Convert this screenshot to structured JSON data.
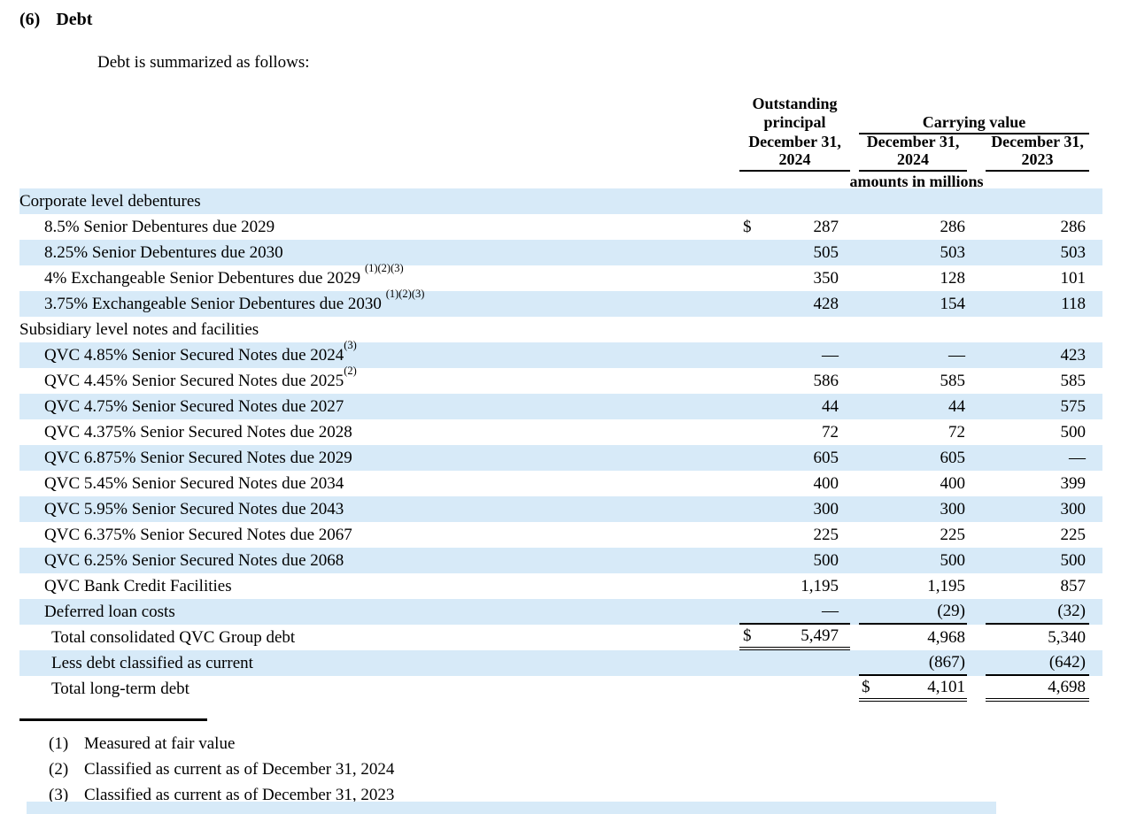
{
  "page": {
    "section_number": "(6)",
    "section_title": "Debt",
    "intro": "Debt is summarized as follows:"
  },
  "colors": {
    "row_highlight": "#d7eaf8"
  },
  "table": {
    "header": {
      "col1_line1": "Outstanding",
      "col1_line2": "principal",
      "col1_line3": "December 31,",
      "col1_line4": "2024",
      "group2_title": "Carrying value",
      "col2_line1": "December 31,",
      "col2_line2": "2024",
      "col3_line1": "December 31,",
      "col3_line2": "2023",
      "units_note": "amounts in millions"
    },
    "rows": [
      {
        "label": "Corporate level debentures",
        "indent": 0,
        "hl": true
      },
      {
        "label": "8.5% Senior Debentures due 2029",
        "indent": 1,
        "c1": {
          "cur": "$",
          "val": "287"
        },
        "c2": {
          "val": "286"
        },
        "c3": {
          "val": "286"
        }
      },
      {
        "label": "8.25% Senior Debentures due 2030",
        "indent": 1,
        "hl": true,
        "c1": {
          "val": "505"
        },
        "c2": {
          "val": "503"
        },
        "c3": {
          "val": "503"
        }
      },
      {
        "label": "4% Exchangeable Senior Debentures due 2029 ",
        "sup": "(1)(2)(3)",
        "indent": 1,
        "c1": {
          "val": "350"
        },
        "c2": {
          "val": "128"
        },
        "c3": {
          "val": "101"
        }
      },
      {
        "label": "3.75% Exchangeable Senior Debentures due 2030 ",
        "sup": "(1)(2)(3)",
        "indent": 1,
        "hl": true,
        "c1": {
          "val": "428"
        },
        "c2": {
          "val": "154"
        },
        "c3": {
          "val": "118"
        }
      },
      {
        "label": "Subsidiary level notes and facilities",
        "indent": 0
      },
      {
        "label": "QVC 4.85% Senior Secured Notes due 2024",
        "sup": "(3)",
        "indent": 1,
        "hl": true,
        "c1": {
          "val": "—"
        },
        "c2": {
          "val": "—"
        },
        "c3": {
          "val": "423"
        }
      },
      {
        "label": "QVC 4.45% Senior Secured Notes due 2025",
        "sup": "(2)",
        "indent": 1,
        "c1": {
          "val": "586"
        },
        "c2": {
          "val": "585"
        },
        "c3": {
          "val": "585"
        }
      },
      {
        "label": "QVC 4.75% Senior Secured Notes due 2027",
        "indent": 1,
        "hl": true,
        "c1": {
          "val": "44"
        },
        "c2": {
          "val": "44"
        },
        "c3": {
          "val": "575"
        }
      },
      {
        "label": "QVC 4.375% Senior Secured Notes due 2028",
        "indent": 1,
        "c1": {
          "val": "72"
        },
        "c2": {
          "val": "72"
        },
        "c3": {
          "val": "500"
        }
      },
      {
        "label": "QVC 6.875% Senior Secured Notes due 2029",
        "indent": 1,
        "hl": true,
        "c1": {
          "val": "605"
        },
        "c2": {
          "val": "605"
        },
        "c3": {
          "val": "—"
        }
      },
      {
        "label": "QVC 5.45% Senior Secured Notes due 2034",
        "indent": 1,
        "c1": {
          "val": "400"
        },
        "c2": {
          "val": "400"
        },
        "c3": {
          "val": "399"
        }
      },
      {
        "label": "QVC 5.95% Senior Secured Notes due 2043",
        "indent": 1,
        "hl": true,
        "c1": {
          "val": "300"
        },
        "c2": {
          "val": "300"
        },
        "c3": {
          "val": "300"
        }
      },
      {
        "label": "QVC 6.375% Senior Secured Notes due 2067",
        "indent": 1,
        "c1": {
          "val": "225"
        },
        "c2": {
          "val": "225"
        },
        "c3": {
          "val": "225"
        }
      },
      {
        "label": "QVC 6.25% Senior Secured Notes due 2068",
        "indent": 1,
        "hl": true,
        "c1": {
          "val": "500"
        },
        "c2": {
          "val": "500"
        },
        "c3": {
          "val": "500"
        }
      },
      {
        "label": "QVC Bank Credit Facilities",
        "indent": 1,
        "c1": {
          "val": "1,195"
        },
        "c2": {
          "val": "1,195"
        },
        "c3": {
          "val": "857"
        }
      },
      {
        "label": "Deferred loan costs",
        "indent": 1,
        "hl": true,
        "c1": {
          "val": "—",
          "border": "single"
        },
        "c2": {
          "val": "(29)",
          "border": "single"
        },
        "c3": {
          "val": "(32)",
          "border": "single"
        }
      },
      {
        "label": "Total consolidated QVC Group debt",
        "indent": 2,
        "c1": {
          "cur": "$",
          "val": "5,497",
          "border": "double"
        },
        "c2": {
          "val": "4,968"
        },
        "c3": {
          "val": "5,340"
        }
      },
      {
        "label": "Less debt classified as current",
        "indent": 2,
        "hl": true,
        "c2": {
          "val": "(867)",
          "border": "single"
        },
        "c3": {
          "val": "(642)",
          "border": "single"
        }
      },
      {
        "label": "Total long-term debt",
        "indent": 2,
        "c2": {
          "cur": "$",
          "val": "4,101",
          "border": "double"
        },
        "c3": {
          "val": "4,698",
          "border": "double"
        }
      }
    ]
  },
  "footnotes": [
    {
      "marker": "(1)",
      "text": "Measured at fair value"
    },
    {
      "marker": "(2)",
      "text": "Classified as current as of December 31, 2024"
    },
    {
      "marker": "(3)",
      "text": "Classified as current as of December 31, 2023"
    }
  ]
}
